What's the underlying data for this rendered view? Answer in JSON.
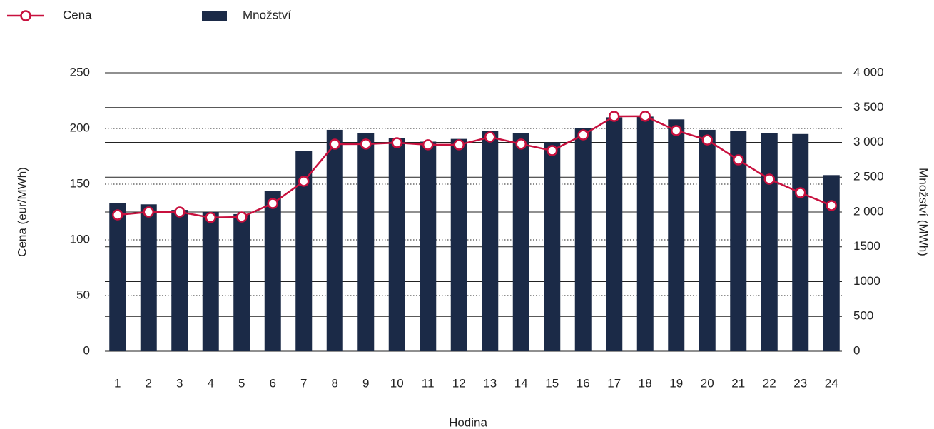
{
  "chart_data": {
    "type": "bar-line",
    "x_label": "Hodina",
    "y_label": "Cena (eur/MWh)",
    "y2_label": "Množství (MWh)",
    "categories": [
      "1",
      "2",
      "3",
      "4",
      "5",
      "6",
      "7",
      "8",
      "9",
      "10",
      "11",
      "12",
      "13",
      "14",
      "15",
      "16",
      "17",
      "18",
      "19",
      "20",
      "21",
      "22",
      "23",
      "24"
    ],
    "series": [
      {
        "name": "Cena",
        "type": "line",
        "color": "#c8103e",
        "axis": "y",
        "values": [
          122.4,
          125,
          125,
          120,
          120.5,
          132.7,
          152.6,
          185.9,
          186,
          187.2,
          185.3,
          185.3,
          192.3,
          186,
          180.1,
          194.2,
          210.9,
          211,
          198.1,
          189.7,
          171.8,
          154.5,
          142.3,
          130.8
        ]
      },
      {
        "name": "Množství",
        "type": "bar",
        "color": "#1b2a47",
        "axis": "y2",
        "values": [
          2130,
          2110,
          2030,
          2000,
          1970,
          2300,
          2880,
          3180,
          3130,
          3060,
          3010,
          3050,
          3160,
          3130,
          3000,
          3200,
          3360,
          3370,
          3330,
          3180,
          3160,
          3130,
          3120,
          2530
        ]
      }
    ],
    "ylim": [
      0,
      250
    ],
    "yticks": [
      0,
      50,
      100,
      150,
      200,
      250
    ],
    "y2lim": [
      0,
      4000
    ],
    "y2ticks": [
      0,
      500,
      {
        "value": 1000,
        "label": "1000"
      },
      {
        "value": 1500,
        "label": "1500"
      },
      {
        "value": 2000,
        "label": "2 000"
      },
      {
        "value": 2500,
        "label": "2 500"
      },
      {
        "value": 3000,
        "label": "3 000"
      },
      {
        "value": 3500,
        "label": "3 500"
      },
      {
        "value": 4000,
        "label": "4 000"
      }
    ],
    "legend": "top-left"
  }
}
